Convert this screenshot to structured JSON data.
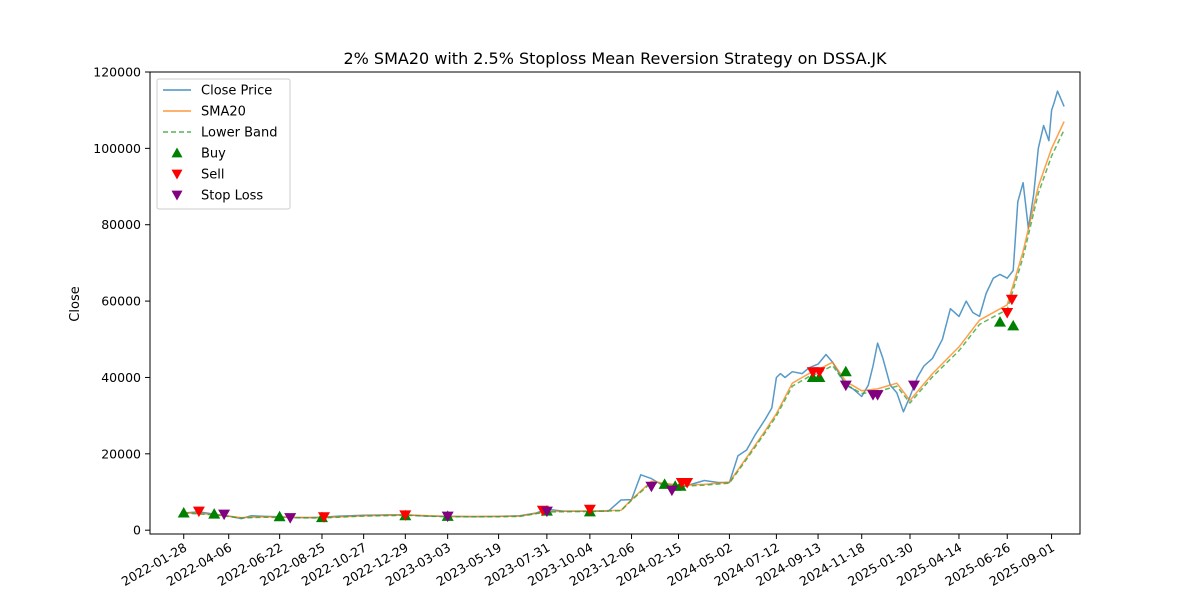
{
  "chart_data": {
    "type": "line",
    "title": "2% SMA20 with 2.5% Stoploss Mean Reversion Strategy on DSSA.JK",
    "xlabel": "",
    "ylabel": "Close",
    "ylim": [
      -1000,
      120000
    ],
    "xlim": [
      "2021-12-08",
      "2025-10-14"
    ],
    "y_ticks": [
      0,
      20000,
      40000,
      60000,
      80000,
      100000,
      120000
    ],
    "x_ticks": [
      "2022-01-28",
      "2022-04-06",
      "2022-06-22",
      "2022-08-25",
      "2022-10-27",
      "2022-12-29",
      "2023-03-03",
      "2023-05-19",
      "2023-07-31",
      "2023-10-04",
      "2023-12-06",
      "2024-02-15",
      "2024-05-02",
      "2024-07-12",
      "2024-09-13",
      "2024-11-18",
      "2025-01-30",
      "2025-04-14",
      "2025-06-26",
      "2025-09-01"
    ],
    "legend_position": "upper left",
    "legend": [
      {
        "label": "Close Price",
        "kind": "line",
        "color": "#1f77b4"
      },
      {
        "label": "SMA20",
        "kind": "line",
        "color": "#ff7f0e"
      },
      {
        "label": "Lower Band",
        "kind": "dashed",
        "color": "#2ca02c"
      },
      {
        "label": "Buy",
        "kind": "marker-up",
        "color": "#008000"
      },
      {
        "label": "Sell",
        "kind": "marker-down",
        "color": "#ff0000"
      },
      {
        "label": "Stop Loss",
        "kind": "marker-down",
        "color": "#800080"
      }
    ],
    "series": [
      {
        "name": "Close Price",
        "color": "#1f77b4",
        "x": [
          "2022-01-28",
          "2022-02-20",
          "2022-03-15",
          "2022-04-06",
          "2022-04-25",
          "2022-05-10",
          "2022-06-01",
          "2022-06-22",
          "2022-07-15",
          "2022-08-05",
          "2022-08-25",
          "2022-09-20",
          "2022-10-27",
          "2022-11-30",
          "2022-12-29",
          "2023-02-01",
          "2023-03-03",
          "2023-04-10",
          "2023-05-19",
          "2023-06-20",
          "2023-07-15",
          "2023-07-31",
          "2023-08-25",
          "2023-09-20",
          "2023-10-04",
          "2023-11-01",
          "2023-11-20",
          "2023-12-06",
          "2023-12-20",
          "2024-01-05",
          "2024-01-15",
          "2024-01-25",
          "2024-02-05",
          "2024-02-15",
          "2024-03-05",
          "2024-03-25",
          "2024-04-15",
          "2024-05-02",
          "2024-05-15",
          "2024-05-28",
          "2024-06-10",
          "2024-06-25",
          "2024-07-05",
          "2024-07-12",
          "2024-07-18",
          "2024-07-25",
          "2024-08-05",
          "2024-08-20",
          "2024-08-30",
          "2024-09-13",
          "2024-09-25",
          "2024-10-05",
          "2024-10-15",
          "2024-10-25",
          "2024-11-05",
          "2024-11-18",
          "2024-11-28",
          "2024-12-05",
          "2024-12-12",
          "2024-12-20",
          "2024-12-31",
          "2025-01-10",
          "2025-01-20",
          "2025-01-30",
          "2025-02-10",
          "2025-02-20",
          "2025-03-05",
          "2025-03-20",
          "2025-04-01",
          "2025-04-14",
          "2025-04-25",
          "2025-05-05",
          "2025-05-15",
          "2025-05-25",
          "2025-06-05",
          "2025-06-15",
          "2025-06-26",
          "2025-07-05",
          "2025-07-12",
          "2025-07-20",
          "2025-07-28",
          "2025-08-05",
          "2025-08-12",
          "2025-08-20",
          "2025-08-28",
          "2025-09-01",
          "2025-09-05",
          "2025-09-10",
          "2025-09-15",
          "2025-09-20"
        ],
        "values": [
          4500,
          4800,
          4200,
          3700,
          3000,
          3800,
          3600,
          3500,
          3300,
          3300,
          3400,
          3700,
          3900,
          4000,
          4000,
          3700,
          3600,
          3500,
          3600,
          3800,
          4500,
          5500,
          5000,
          5000,
          5000,
          5000,
          7900,
          8000,
          14500,
          13500,
          12500,
          11500,
          11000,
          11000,
          12000,
          13000,
          12500,
          12500,
          19500,
          21000,
          25000,
          29000,
          32000,
          40000,
          41000,
          40000,
          41500,
          41000,
          42500,
          43500,
          46000,
          44000,
          41000,
          38000,
          37000,
          35000,
          38000,
          43000,
          49000,
          45000,
          38000,
          36000,
          31000,
          35000,
          40000,
          43000,
          45000,
          50000,
          58000,
          56000,
          60000,
          57000,
          56000,
          62000,
          66000,
          67000,
          66000,
          68000,
          86000,
          91000,
          79000,
          88000,
          100000,
          106000,
          102000,
          110000,
          112000,
          115000,
          113000,
          111000
        ]
      },
      {
        "name": "SMA20",
        "color": "#ff7f0e",
        "x": [
          "2022-01-28",
          "2022-03-15",
          "2022-04-25",
          "2022-06-01",
          "2022-06-22",
          "2022-08-25",
          "2022-10-27",
          "2022-12-29",
          "2023-03-03",
          "2023-05-19",
          "2023-06-20",
          "2023-07-31",
          "2023-10-04",
          "2023-11-20",
          "2023-12-06",
          "2024-01-05",
          "2024-01-25",
          "2024-02-15",
          "2024-03-25",
          "2024-05-02",
          "2024-05-28",
          "2024-06-25",
          "2024-07-12",
          "2024-08-05",
          "2024-08-30",
          "2024-09-13",
          "2024-10-05",
          "2024-10-25",
          "2024-11-18",
          "2024-12-12",
          "2025-01-10",
          "2025-01-30",
          "2025-03-05",
          "2025-04-14",
          "2025-05-15",
          "2025-06-26",
          "2025-07-20",
          "2025-08-12",
          "2025-09-01",
          "2025-09-20"
        ],
        "values": [
          4600,
          4100,
          3300,
          3500,
          3400,
          3300,
          3800,
          4000,
          3600,
          3600,
          3700,
          4900,
          5000,
          5200,
          8000,
          12800,
          12300,
          11800,
          12000,
          12600,
          19000,
          26000,
          30500,
          38500,
          41000,
          42000,
          44000,
          39000,
          36500,
          37000,
          38500,
          34000,
          41000,
          48000,
          55000,
          59000,
          73000,
          90000,
          100000,
          107000
        ]
      },
      {
        "name": "Lower Band",
        "color": "#2ca02c",
        "dashed": true,
        "x": [
          "2022-01-28",
          "2022-03-15",
          "2022-04-25",
          "2022-06-01",
          "2022-06-22",
          "2022-08-25",
          "2022-10-27",
          "2022-12-29",
          "2023-03-03",
          "2023-05-19",
          "2023-06-20",
          "2023-07-31",
          "2023-10-04",
          "2023-11-20",
          "2023-12-06",
          "2024-01-05",
          "2024-01-25",
          "2024-02-15",
          "2024-03-25",
          "2024-05-02",
          "2024-05-28",
          "2024-06-25",
          "2024-07-12",
          "2024-08-05",
          "2024-08-30",
          "2024-09-13",
          "2024-10-05",
          "2024-10-25",
          "2024-11-18",
          "2024-12-12",
          "2025-01-10",
          "2025-01-30",
          "2025-03-05",
          "2025-04-14",
          "2025-05-15",
          "2025-06-26",
          "2025-07-20",
          "2025-08-12",
          "2025-09-01",
          "2025-09-20"
        ],
        "values": [
          4500,
          4000,
          3200,
          3400,
          3300,
          3200,
          3700,
          3900,
          3500,
          3500,
          3600,
          4800,
          4900,
          5100,
          7800,
          12500,
          12000,
          11500,
          11800,
          12300,
          18600,
          25500,
          29900,
          37700,
          40200,
          41100,
          43100,
          38200,
          35800,
          36300,
          37700,
          33300,
          40200,
          47000,
          53900,
          57800,
          71500,
          88200,
          98000,
          104800
        ]
      }
    ],
    "markers": {
      "buy": {
        "color": "#008000",
        "points": [
          {
            "x": "2022-01-28",
            "y": 4500
          },
          {
            "x": "2022-03-15",
            "y": 4200
          },
          {
            "x": "2022-06-22",
            "y": 3500
          },
          {
            "x": "2022-08-25",
            "y": 3300
          },
          {
            "x": "2022-12-29",
            "y": 3800
          },
          {
            "x": "2023-03-03",
            "y": 3600
          },
          {
            "x": "2023-07-31",
            "y": 5000
          },
          {
            "x": "2023-10-04",
            "y": 4800
          },
          {
            "x": "2024-01-25",
            "y": 12000
          },
          {
            "x": "2024-02-10",
            "y": 11500
          },
          {
            "x": "2024-02-18",
            "y": 11500
          },
          {
            "x": "2024-09-05",
            "y": 40000
          },
          {
            "x": "2024-09-15",
            "y": 40000
          },
          {
            "x": "2024-10-25",
            "y": 41500
          },
          {
            "x": "2025-06-15",
            "y": 54500
          },
          {
            "x": "2025-07-05",
            "y": 53500
          }
        ]
      },
      "sell": {
        "color": "#ff0000",
        "points": [
          {
            "x": "2022-02-20",
            "y": 5000
          },
          {
            "x": "2022-08-28",
            "y": 3500
          },
          {
            "x": "2022-12-29",
            "y": 4000
          },
          {
            "x": "2023-07-25",
            "y": 5200
          },
          {
            "x": "2023-10-04",
            "y": 5500
          },
          {
            "x": "2024-02-20",
            "y": 12500
          },
          {
            "x": "2024-02-28",
            "y": 12500
          },
          {
            "x": "2024-09-05",
            "y": 41500
          },
          {
            "x": "2024-09-15",
            "y": 41500
          },
          {
            "x": "2025-06-26",
            "y": 57000
          },
          {
            "x": "2025-07-03",
            "y": 60500
          }
        ]
      },
      "stop_loss": {
        "color": "#800080",
        "points": [
          {
            "x": "2022-03-30",
            "y": 4200
          },
          {
            "x": "2022-07-08",
            "y": 3300
          },
          {
            "x": "2023-03-03",
            "y": 3700
          },
          {
            "x": "2023-07-31",
            "y": 5000
          },
          {
            "x": "2024-01-05",
            "y": 11500
          },
          {
            "x": "2024-02-05",
            "y": 10500
          },
          {
            "x": "2024-10-25",
            "y": 38000
          },
          {
            "x": "2024-12-05",
            "y": 35500
          },
          {
            "x": "2024-12-12",
            "y": 35500
          },
          {
            "x": "2025-02-05",
            "y": 38000
          }
        ]
      }
    }
  }
}
